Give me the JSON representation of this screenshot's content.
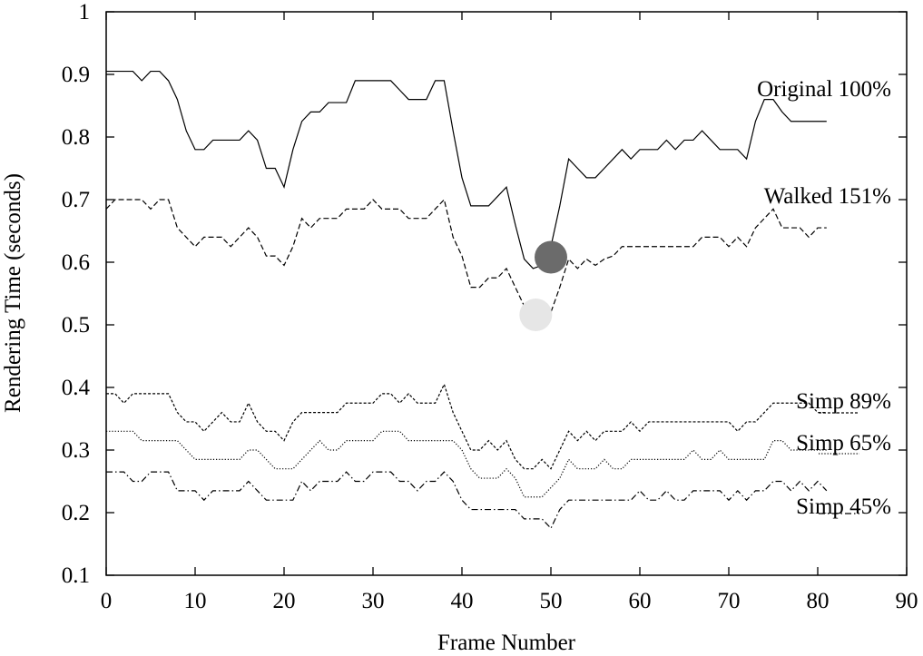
{
  "chart_data": {
    "type": "line",
    "title": "",
    "xlabel": "Frame Number",
    "ylabel": "Rendering Time (seconds)",
    "xlim": [
      0,
      90
    ],
    "ylim": [
      0.1,
      1.0
    ],
    "xticks": [
      0,
      10,
      20,
      30,
      40,
      50,
      60,
      70,
      80,
      90
    ],
    "yticks": [
      0.1,
      0.2,
      0.3,
      0.4,
      0.5,
      0.6,
      0.7,
      0.8,
      0.9,
      1.0
    ],
    "ytick_labels": [
      "0.1",
      "0.2",
      "0.3",
      "0.4",
      "0.5",
      "0.6",
      "0.7",
      "0.8",
      "0.9",
      "1"
    ],
    "grid": false,
    "legend": "inline-right",
    "series": [
      {
        "name": "Original 100%",
        "style": "solid",
        "x": [
          0,
          1,
          2,
          3,
          4,
          5,
          6,
          7,
          8,
          9,
          10,
          11,
          12,
          13,
          14,
          15,
          16,
          17,
          18,
          19,
          20,
          21,
          22,
          23,
          24,
          25,
          26,
          27,
          28,
          29,
          30,
          31,
          32,
          33,
          34,
          35,
          36,
          37,
          38,
          39,
          40,
          41,
          42,
          43,
          44,
          45,
          46,
          47,
          48,
          49,
          50,
          51,
          52,
          53,
          54,
          55,
          56,
          57,
          58,
          59,
          60,
          61,
          62,
          63,
          64,
          65,
          66,
          67,
          68,
          69,
          70,
          71,
          72,
          73,
          74,
          75,
          76,
          77,
          78,
          79,
          80,
          81
        ],
        "y": [
          0.905,
          0.905,
          0.905,
          0.905,
          0.89,
          0.905,
          0.905,
          0.89,
          0.86,
          0.81,
          0.78,
          0.78,
          0.795,
          0.795,
          0.795,
          0.795,
          0.81,
          0.795,
          0.75,
          0.75,
          0.72,
          0.78,
          0.825,
          0.84,
          0.84,
          0.855,
          0.855,
          0.855,
          0.89,
          0.89,
          0.89,
          0.89,
          0.89,
          0.875,
          0.86,
          0.86,
          0.86,
          0.89,
          0.89,
          0.81,
          0.735,
          0.69,
          0.69,
          0.69,
          0.705,
          0.72,
          0.66,
          0.605,
          0.59,
          0.595,
          0.625,
          0.69,
          0.765,
          0.75,
          0.735,
          0.735,
          0.75,
          0.765,
          0.78,
          0.765,
          0.78,
          0.78,
          0.78,
          0.795,
          0.78,
          0.795,
          0.795,
          0.81,
          0.795,
          0.78,
          0.78,
          0.78,
          0.765,
          0.825,
          0.86,
          0.86,
          0.84,
          0.825,
          0.825,
          0.825,
          0.825,
          0.825
        ],
        "color": "#000000"
      },
      {
        "name": "Walked 151%",
        "style": "dashed",
        "x": [
          0,
          1,
          2,
          3,
          4,
          5,
          6,
          7,
          8,
          9,
          10,
          11,
          12,
          13,
          14,
          15,
          16,
          17,
          18,
          19,
          20,
          21,
          22,
          23,
          24,
          25,
          26,
          27,
          28,
          29,
          30,
          31,
          32,
          33,
          34,
          35,
          36,
          37,
          38,
          39,
          40,
          41,
          42,
          43,
          44,
          45,
          46,
          47,
          48,
          49,
          50,
          51,
          52,
          53,
          54,
          55,
          56,
          57,
          58,
          59,
          60,
          61,
          62,
          63,
          64,
          65,
          66,
          67,
          68,
          69,
          70,
          71,
          72,
          73,
          74,
          75,
          76,
          77,
          78,
          79,
          80,
          81
        ],
        "y": [
          0.685,
          0.7,
          0.7,
          0.7,
          0.7,
          0.685,
          0.7,
          0.7,
          0.655,
          0.64,
          0.625,
          0.64,
          0.64,
          0.64,
          0.625,
          0.64,
          0.655,
          0.64,
          0.61,
          0.61,
          0.595,
          0.625,
          0.67,
          0.655,
          0.67,
          0.67,
          0.67,
          0.685,
          0.685,
          0.685,
          0.7,
          0.685,
          0.685,
          0.685,
          0.67,
          0.67,
          0.67,
          0.685,
          0.7,
          0.64,
          0.61,
          0.56,
          0.56,
          0.575,
          0.575,
          0.59,
          0.56,
          0.53,
          0.52,
          0.505,
          0.52,
          0.56,
          0.605,
          0.59,
          0.605,
          0.595,
          0.605,
          0.61,
          0.625,
          0.625,
          0.625,
          0.625,
          0.625,
          0.625,
          0.625,
          0.625,
          0.625,
          0.64,
          0.64,
          0.64,
          0.625,
          0.64,
          0.625,
          0.655,
          0.67,
          0.685,
          0.655,
          0.655,
          0.655,
          0.64,
          0.655,
          0.655
        ],
        "color": "#000000"
      },
      {
        "name": "Simp 89%",
        "style": "short-dashed",
        "x": [
          0,
          1,
          2,
          3,
          4,
          5,
          6,
          7,
          8,
          9,
          10,
          11,
          12,
          13,
          14,
          15,
          16,
          17,
          18,
          19,
          20,
          21,
          22,
          23,
          24,
          25,
          26,
          27,
          28,
          29,
          30,
          31,
          32,
          33,
          34,
          35,
          36,
          37,
          38,
          39,
          40,
          41,
          42,
          43,
          44,
          45,
          46,
          47,
          48,
          49,
          50,
          51,
          52,
          53,
          54,
          55,
          56,
          57,
          58,
          59,
          60,
          61,
          62,
          63,
          64,
          65,
          66,
          67,
          68,
          69,
          70,
          71,
          72,
          73,
          74,
          75,
          76,
          77,
          78,
          79,
          80,
          81
        ],
        "y": [
          0.39,
          0.39,
          0.375,
          0.39,
          0.39,
          0.39,
          0.39,
          0.39,
          0.36,
          0.345,
          0.345,
          0.33,
          0.345,
          0.36,
          0.345,
          0.345,
          0.375,
          0.345,
          0.33,
          0.33,
          0.315,
          0.345,
          0.36,
          0.36,
          0.36,
          0.36,
          0.36,
          0.375,
          0.375,
          0.375,
          0.375,
          0.39,
          0.39,
          0.375,
          0.39,
          0.375,
          0.375,
          0.375,
          0.405,
          0.36,
          0.33,
          0.3,
          0.3,
          0.315,
          0.3,
          0.315,
          0.285,
          0.27,
          0.27,
          0.285,
          0.27,
          0.3,
          0.33,
          0.315,
          0.33,
          0.315,
          0.33,
          0.33,
          0.33,
          0.345,
          0.33,
          0.345,
          0.345,
          0.345,
          0.345,
          0.345,
          0.345,
          0.345,
          0.345,
          0.345,
          0.345,
          0.33,
          0.345,
          0.345,
          0.36,
          0.375,
          0.375,
          0.375,
          0.375,
          0.375,
          0.36,
          0.36
        ],
        "color": "#000000"
      },
      {
        "name": "Simp 65%",
        "style": "dotted",
        "x": [
          0,
          1,
          2,
          3,
          4,
          5,
          6,
          7,
          8,
          9,
          10,
          11,
          12,
          13,
          14,
          15,
          16,
          17,
          18,
          19,
          20,
          21,
          22,
          23,
          24,
          25,
          26,
          27,
          28,
          29,
          30,
          31,
          32,
          33,
          34,
          35,
          36,
          37,
          38,
          39,
          40,
          41,
          42,
          43,
          44,
          45,
          46,
          47,
          48,
          49,
          50,
          51,
          52,
          53,
          54,
          55,
          56,
          57,
          58,
          59,
          60,
          61,
          62,
          63,
          64,
          65,
          66,
          67,
          68,
          69,
          70,
          71,
          72,
          73,
          74,
          75,
          76,
          77,
          78,
          79,
          80,
          81
        ],
        "y": [
          0.33,
          0.33,
          0.33,
          0.33,
          0.315,
          0.315,
          0.315,
          0.315,
          0.315,
          0.3,
          0.285,
          0.285,
          0.285,
          0.285,
          0.285,
          0.285,
          0.3,
          0.3,
          0.285,
          0.27,
          0.27,
          0.27,
          0.285,
          0.3,
          0.315,
          0.3,
          0.3,
          0.315,
          0.315,
          0.315,
          0.315,
          0.33,
          0.33,
          0.33,
          0.315,
          0.315,
          0.315,
          0.315,
          0.315,
          0.315,
          0.3,
          0.27,
          0.255,
          0.255,
          0.255,
          0.27,
          0.255,
          0.225,
          0.225,
          0.225,
          0.24,
          0.255,
          0.285,
          0.27,
          0.27,
          0.27,
          0.285,
          0.27,
          0.27,
          0.285,
          0.285,
          0.285,
          0.285,
          0.285,
          0.285,
          0.285,
          0.3,
          0.285,
          0.285,
          0.3,
          0.285,
          0.285,
          0.285,
          0.285,
          0.285,
          0.315,
          0.315,
          0.3,
          0.3,
          0.3,
          0.3,
          0.3
        ],
        "color": "#000000"
      },
      {
        "name": "Simp 45%",
        "style": "dash-dot",
        "x": [
          0,
          1,
          2,
          3,
          4,
          5,
          6,
          7,
          8,
          9,
          10,
          11,
          12,
          13,
          14,
          15,
          16,
          17,
          18,
          19,
          20,
          21,
          22,
          23,
          24,
          25,
          26,
          27,
          28,
          29,
          30,
          31,
          32,
          33,
          34,
          35,
          36,
          37,
          38,
          39,
          40,
          41,
          42,
          43,
          44,
          45,
          46,
          47,
          48,
          49,
          50,
          51,
          52,
          53,
          54,
          55,
          56,
          57,
          58,
          59,
          60,
          61,
          62,
          63,
          64,
          65,
          66,
          67,
          68,
          69,
          70,
          71,
          72,
          73,
          74,
          75,
          76,
          77,
          78,
          79,
          80,
          81
        ],
        "y": [
          0.265,
          0.265,
          0.265,
          0.25,
          0.25,
          0.265,
          0.265,
          0.265,
          0.235,
          0.235,
          0.235,
          0.22,
          0.235,
          0.235,
          0.235,
          0.235,
          0.25,
          0.235,
          0.22,
          0.22,
          0.22,
          0.22,
          0.25,
          0.235,
          0.25,
          0.25,
          0.25,
          0.265,
          0.25,
          0.25,
          0.265,
          0.265,
          0.265,
          0.25,
          0.25,
          0.235,
          0.25,
          0.25,
          0.265,
          0.25,
          0.22,
          0.205,
          0.205,
          0.205,
          0.205,
          0.205,
          0.205,
          0.19,
          0.19,
          0.19,
          0.175,
          0.205,
          0.22,
          0.22,
          0.22,
          0.22,
          0.22,
          0.22,
          0.22,
          0.22,
          0.235,
          0.22,
          0.22,
          0.235,
          0.22,
          0.22,
          0.235,
          0.235,
          0.235,
          0.235,
          0.22,
          0.235,
          0.22,
          0.235,
          0.235,
          0.25,
          0.25,
          0.235,
          0.25,
          0.235,
          0.25,
          0.235
        ],
        "color": "#000000"
      }
    ],
    "markers": [
      {
        "x": 50,
        "y": 0.608,
        "color": "#6b6b6b"
      },
      {
        "x": 48.3,
        "y": 0.516,
        "color": "#e6e6e6"
      }
    ]
  }
}
